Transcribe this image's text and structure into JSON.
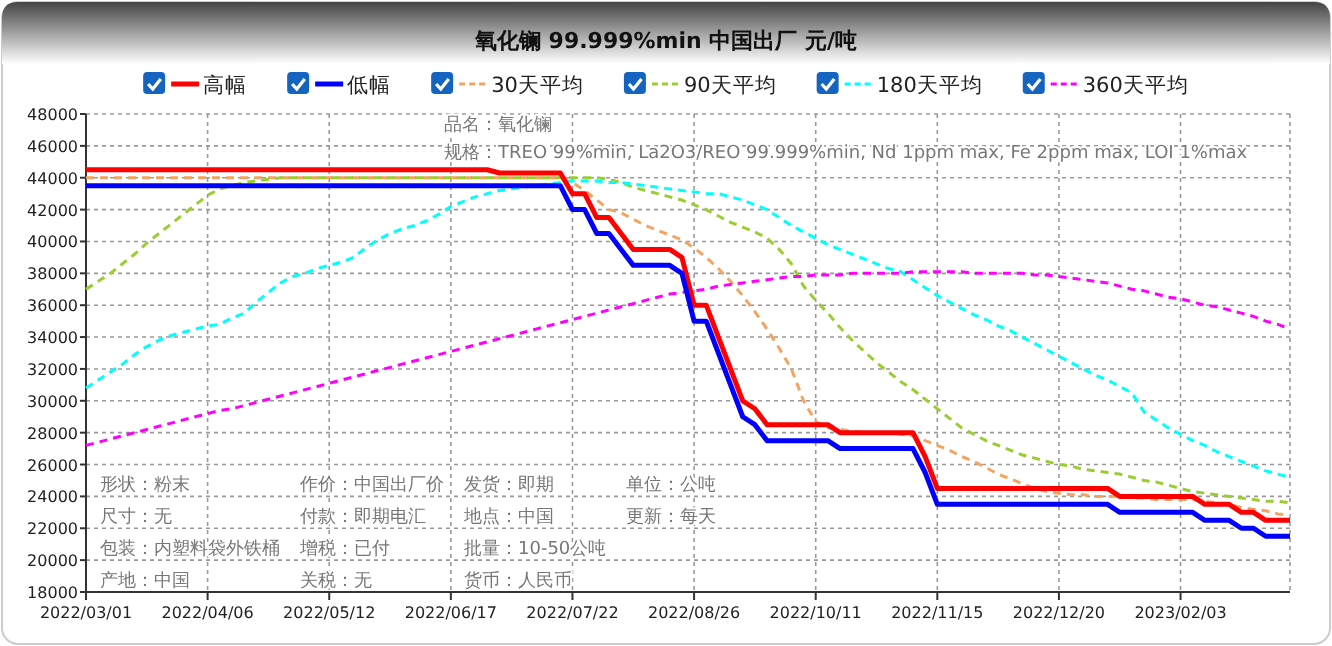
{
  "chart_data": {
    "type": "line",
    "title": "氧化镧 99.999%min 中国出厂 元/吨",
    "categories": [
      "2022/03/01",
      null,
      null,
      null,
      null,
      null,
      null,
      null,
      null,
      null,
      "2022/04/06",
      null,
      null,
      null,
      null,
      null,
      null,
      null,
      null,
      null,
      "2022/05/12",
      null,
      null,
      null,
      null,
      null,
      null,
      null,
      null,
      null,
      "2022/06/17",
      null,
      null,
      null,
      null,
      null,
      null,
      null,
      null,
      null,
      "2022/07/22",
      null,
      null,
      null,
      null,
      null,
      null,
      null,
      null,
      null,
      "2022/08/26",
      null,
      null,
      null,
      null,
      null,
      null,
      null,
      null,
      null,
      "2022/10/11",
      null,
      null,
      null,
      null,
      null,
      null,
      null,
      null,
      null,
      "2022/11/15",
      null,
      null,
      null,
      null,
      null,
      null,
      null,
      null,
      null,
      "2022/12/20",
      null,
      null,
      null,
      null,
      null,
      null,
      null,
      null,
      null,
      "2023/02/03",
      null,
      null,
      null,
      null,
      null,
      null,
      null,
      null,
      null
    ],
    "series": [
      {
        "name": "高幅",
        "color": "#ff0000",
        "line_style": "solid",
        "values": [
          44500,
          44500,
          44500,
          44500,
          44500,
          44500,
          44500,
          44500,
          44500,
          44500,
          44500,
          44500,
          44500,
          44500,
          44500,
          44500,
          44500,
          44500,
          44500,
          44500,
          44500,
          44500,
          44500,
          44500,
          44500,
          44500,
          44500,
          44500,
          44500,
          44500,
          44500,
          44500,
          44500,
          44500,
          44300,
          44300,
          44300,
          44300,
          44300,
          44300,
          43000,
          43000,
          41500,
          41500,
          40500,
          39500,
          39500,
          39500,
          39500,
          39000,
          36000,
          36000,
          34000,
          32000,
          30000,
          29500,
          28500,
          28500,
          28500,
          28500,
          28500,
          28500,
          28000,
          28000,
          28000,
          28000,
          28000,
          28000,
          28000,
          26500,
          24500,
          24500,
          24500,
          24500,
          24500,
          24500,
          24500,
          24500,
          24500,
          24500,
          24500,
          24500,
          24500,
          24500,
          24500,
          24000,
          24000,
          24000,
          24000,
          24000,
          24000,
          24000,
          23500,
          23500,
          23500,
          23000,
          23000,
          22500,
          22500,
          22500
        ]
      },
      {
        "name": "低幅",
        "color": "#0000ff",
        "line_style": "solid",
        "values": [
          43500,
          43500,
          43500,
          43500,
          43500,
          43500,
          43500,
          43500,
          43500,
          43500,
          43500,
          43500,
          43500,
          43500,
          43500,
          43500,
          43500,
          43500,
          43500,
          43500,
          43500,
          43500,
          43500,
          43500,
          43500,
          43500,
          43500,
          43500,
          43500,
          43500,
          43500,
          43500,
          43500,
          43500,
          43500,
          43500,
          43500,
          43500,
          43500,
          43500,
          42000,
          42000,
          40500,
          40500,
          39500,
          38500,
          38500,
          38500,
          38500,
          38000,
          35000,
          35000,
          33000,
          31000,
          29000,
          28500,
          27500,
          27500,
          27500,
          27500,
          27500,
          27500,
          27000,
          27000,
          27000,
          27000,
          27000,
          27000,
          27000,
          25500,
          23500,
          23500,
          23500,
          23500,
          23500,
          23500,
          23500,
          23500,
          23500,
          23500,
          23500,
          23500,
          23500,
          23500,
          23500,
          23000,
          23000,
          23000,
          23000,
          23000,
          23000,
          23000,
          22500,
          22500,
          22500,
          22000,
          22000,
          21500,
          21500,
          21500
        ]
      },
      {
        "name": "30天平均",
        "color": "#f4a460",
        "line_style": "dashed",
        "values": [
          44000,
          44000,
          44000,
          44000,
          44000,
          44000,
          44000,
          44000,
          44000,
          44000,
          44000,
          44000,
          44000,
          44000,
          44000,
          44000,
          44000,
          44000,
          44000,
          44000,
          44000,
          44000,
          44000,
          44000,
          44000,
          44000,
          44000,
          44000,
          44000,
          44000,
          44000,
          44000,
          44000,
          44000,
          44000,
          44000,
          44000,
          44000,
          44000,
          44000,
          43700,
          43200,
          42600,
          42000,
          41800,
          41400,
          41000,
          40700,
          40400,
          40100,
          39600,
          39000,
          38300,
          37500,
          36600,
          35600,
          34500,
          33300,
          32000,
          30000,
          28700,
          28300,
          28200,
          28100,
          28000,
          28000,
          28000,
          27900,
          27800,
          27500,
          27200,
          26900,
          26500,
          26200,
          25800,
          25400,
          25100,
          24800,
          24500,
          24300,
          24200,
          24100,
          24100,
          24000,
          24000,
          24000,
          23900,
          23900,
          23800,
          23800,
          23800,
          23800,
          23700,
          23600,
          23500,
          23300,
          23200,
          23100,
          22900,
          22800
        ]
      },
      {
        "name": "90天平均",
        "color": "#9acd32",
        "line_style": "dashed",
        "values": [
          37000,
          37500,
          38000,
          38600,
          39200,
          39900,
          40500,
          41100,
          41700,
          42300,
          42900,
          43300,
          43500,
          43700,
          43800,
          43900,
          44000,
          44000,
          44000,
          44000,
          44000,
          44000,
          44000,
          44000,
          44000,
          44000,
          44000,
          44000,
          44000,
          44000,
          44000,
          44000,
          44000,
          44000,
          44000,
          44000,
          44000,
          44000,
          44000,
          44000,
          44000,
          44000,
          44000,
          43900,
          43700,
          43400,
          43200,
          43000,
          42800,
          42600,
          42300,
          42000,
          41600,
          41200,
          40900,
          40600,
          40200,
          39500,
          38600,
          37200,
          36300,
          35500,
          34600,
          33800,
          33100,
          32400,
          31800,
          31200,
          30700,
          30100,
          29500,
          28900,
          28300,
          27900,
          27500,
          27200,
          26900,
          26600,
          26400,
          26200,
          26000,
          25900,
          25700,
          25600,
          25500,
          25400,
          25200,
          25000,
          24900,
          24700,
          24500,
          24300,
          24200,
          24100,
          24000,
          23900,
          23800,
          23700,
          23700,
          23600
        ]
      },
      {
        "name": "180天平均",
        "color": "#00ffff",
        "line_style": "dashed",
        "values": [
          30800,
          31300,
          31800,
          32300,
          32900,
          33400,
          33800,
          34100,
          34300,
          34500,
          34700,
          34800,
          35200,
          35500,
          36200,
          36800,
          37400,
          37800,
          38000,
          38300,
          38500,
          38700,
          39000,
          39600,
          40100,
          40500,
          40800,
          41000,
          41300,
          41700,
          42200,
          42500,
          42800,
          43000,
          43200,
          43300,
          43400,
          43500,
          43600,
          43700,
          43800,
          43800,
          43800,
          43700,
          43700,
          43600,
          43500,
          43400,
          43300,
          43200,
          43100,
          43000,
          43000,
          42800,
          42600,
          42300,
          42000,
          41500,
          41000,
          40600,
          40200,
          39800,
          39500,
          39200,
          38900,
          38600,
          38300,
          38100,
          37600,
          37100,
          36600,
          36200,
          35800,
          35400,
          35100,
          34700,
          34400,
          34000,
          33600,
          33200,
          32800,
          32400,
          32000,
          31600,
          31300,
          30900,
          30500,
          29300,
          28800,
          28300,
          27900,
          27500,
          27200,
          26800,
          26500,
          26200,
          25900,
          25600,
          25400,
          25200
        ]
      },
      {
        "name": "360天平均",
        "color": "#ff00ff",
        "line_style": "dashed",
        "values": [
          27200,
          27400,
          27600,
          27800,
          28000,
          28200,
          28400,
          28600,
          28800,
          29000,
          29200,
          29400,
          29500,
          29700,
          29900,
          30100,
          30300,
          30500,
          30700,
          30900,
          31100,
          31300,
          31500,
          31700,
          31900,
          32100,
          32300,
          32500,
          32700,
          32900,
          33100,
          33300,
          33500,
          33700,
          33900,
          34100,
          34300,
          34500,
          34700,
          34900,
          35100,
          35300,
          35500,
          35700,
          35900,
          36100,
          36300,
          36500,
          36700,
          36800,
          36900,
          37000,
          37200,
          37300,
          37400,
          37500,
          37600,
          37700,
          37800,
          37800,
          37900,
          37900,
          37900,
          38000,
          38000,
          38000,
          38000,
          38000,
          38100,
          38100,
          38100,
          38100,
          38100,
          38000,
          38000,
          38000,
          38000,
          38000,
          37900,
          37900,
          37800,
          37700,
          37600,
          37500,
          37400,
          37200,
          37000,
          36900,
          36700,
          36500,
          36400,
          36200,
          36000,
          35900,
          35700,
          35500,
          35300,
          35000,
          34800,
          34500
        ]
      }
    ],
    "ylim": [
      18000,
      48000
    ],
    "yticks": [
      18000,
      20000,
      22000,
      24000,
      26000,
      28000,
      30000,
      32000,
      34000,
      36000,
      38000,
      40000,
      42000,
      44000,
      46000,
      48000
    ],
    "grid": true,
    "legend": "top",
    "annotations": [
      "品名：氧化镧",
      "规格：TREO 99%min, La2O3/REO 99.999%min, Nd 1ppm max, Fe 2ppm max, LOI 1%max",
      "形状：粉末",
      "尺寸：无",
      "包装：内塑料袋外铁桶",
      "产地：中国",
      "作价：中国出厂价",
      "付款：即期电汇",
      "增税：已付",
      "关税：无",
      "发货：即期",
      "地点：中国",
      "批量：10-50公吨",
      "货币：人民币",
      "单位：公吨",
      "更新：每天"
    ]
  }
}
